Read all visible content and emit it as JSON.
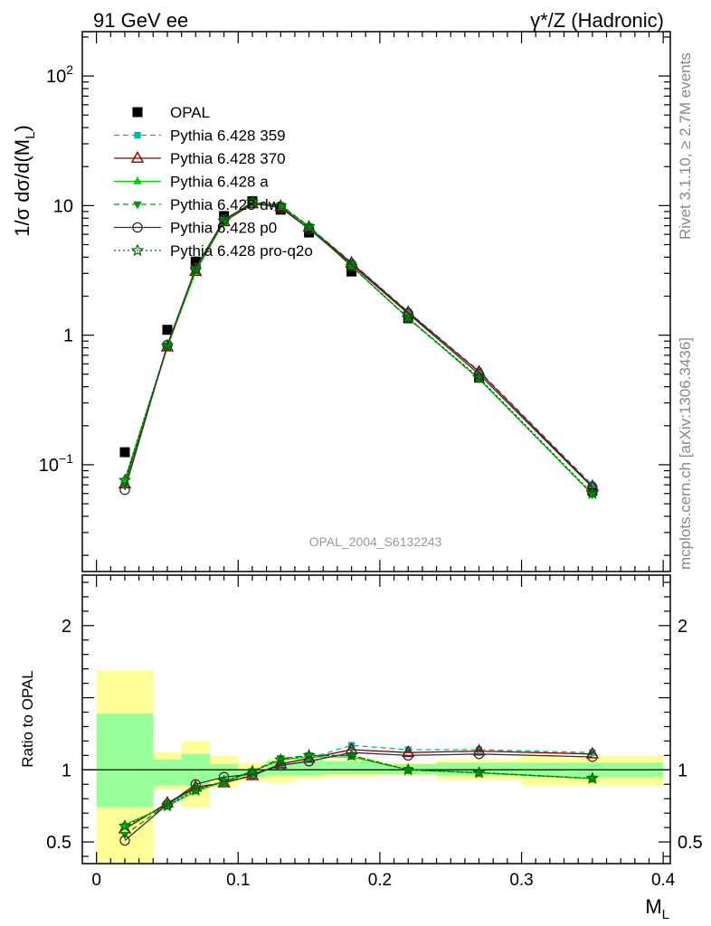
{
  "header": {
    "left": "91 GeV ee",
    "right": "γ*/Z (Hadronic)"
  },
  "side_labels": {
    "top": "Rivet 3.1.10, ≥ 2.7M events",
    "bottom": "mcplots.cern.ch [arXiv:1306.3436]"
  },
  "watermark": "OPAL_2004_S6132243",
  "chart_data": [
    {
      "type": "scatter",
      "panel": "main",
      "ylabel": "1/σ dσ/d(M_L)",
      "xlabel": "",
      "yscale": "log",
      "ylim": [
        0.015,
        220
      ],
      "xlim": [
        -0.01,
        0.405
      ],
      "yticks": [
        {
          "value": 0.1,
          "label": "10^-1"
        },
        {
          "value": 1,
          "label": "1"
        },
        {
          "value": 10,
          "label": "10"
        },
        {
          "value": 100,
          "label": "10^2"
        }
      ],
      "legend_position": "top-left",
      "x": [
        0.02,
        0.05,
        0.07,
        0.09,
        0.11,
        0.13,
        0.15,
        0.18,
        0.22,
        0.27,
        0.35
      ],
      "series": [
        {
          "name": "OPAL",
          "color": "#000000",
          "marker": "filled-square",
          "line": "none",
          "values": [
            0.125,
            1.1,
            3.7,
            8.3,
            10.8,
            9.3,
            6.2,
            3.1,
            1.35,
            0.47,
            0.063
          ]
        },
        {
          "name": "Pythia 6.428 359",
          "color": "#00b49b",
          "marker": "small-square",
          "line": "dashed",
          "values": [
            0.075,
            0.83,
            3.2,
            7.7,
            10.3,
            9.8,
            6.9,
            3.65,
            1.52,
            0.53,
            0.07
          ]
        },
        {
          "name": "Pythia 6.428 370",
          "color": "#8b0000",
          "marker": "open-triangle",
          "line": "solid",
          "values": [
            0.071,
            0.81,
            3.1,
            7.5,
            10.3,
            9.8,
            6.8,
            3.6,
            1.5,
            0.52,
            0.068
          ]
        },
        {
          "name": "Pythia 6.428 a",
          "color": "#00cc00",
          "marker": "filled-triangle",
          "line": "solid",
          "values": [
            0.077,
            0.82,
            3.1,
            7.6,
            10.6,
            10.0,
            6.8,
            3.4,
            1.36,
            0.46,
            0.059
          ]
        },
        {
          "name": "Pythia 6.428 dw",
          "color": "#009900",
          "marker": "filled-down-triangle",
          "line": "dashed",
          "values": [
            0.069,
            0.83,
            3.2,
            7.5,
            10.7,
            10.1,
            6.9,
            3.4,
            1.35,
            0.46,
            0.059
          ]
        },
        {
          "name": "Pythia 6.428 p0",
          "color": "#333333",
          "marker": "open-circle",
          "line": "solid",
          "values": [
            0.064,
            0.84,
            3.3,
            7.8,
            10.5,
            9.6,
            6.6,
            3.5,
            1.47,
            0.5,
            0.067
          ]
        },
        {
          "name": "Pythia 6.428 pro-q2o",
          "color": "#006600",
          "marker": "star",
          "line": "dotted",
          "values": [
            0.076,
            0.83,
            3.2,
            7.6,
            10.7,
            10.0,
            6.9,
            3.4,
            1.36,
            0.47,
            0.06
          ]
        }
      ]
    },
    {
      "type": "line",
      "panel": "ratio",
      "ylabel": "Ratio to OPAL",
      "xlabel": "M_L",
      "ylim": [
        0.35,
        2.35
      ],
      "xlim": [
        -0.01,
        0.405
      ],
      "xticks": [
        {
          "value": 0,
          "label": "0"
        },
        {
          "value": 0.1,
          "label": "0.1"
        },
        {
          "value": 0.2,
          "label": "0.2"
        },
        {
          "value": 0.3,
          "label": "0.3"
        },
        {
          "value": 0.4,
          "label": "0.4"
        }
      ],
      "yticks": [
        {
          "value": 0.5,
          "label": "0.5"
        },
        {
          "value": 1,
          "label": "1"
        },
        {
          "value": 2,
          "label": "2"
        }
      ],
      "uncertainty_bands": {
        "stat_color": "#99ff99",
        "total_color": "#ffff99",
        "bins": [
          {
            "x0": 0.0,
            "x1": 0.04,
            "stat": [
              0.74,
              1.39
            ],
            "total": [
              0.35,
              1.69
            ]
          },
          {
            "x0": 0.04,
            "x1": 0.06,
            "stat": [
              0.89,
              1.07
            ],
            "total": [
              0.86,
              1.12
            ]
          },
          {
            "x0": 0.06,
            "x1": 0.08,
            "stat": [
              0.89,
              1.11
            ],
            "total": [
              0.74,
              1.2
            ]
          },
          {
            "x0": 0.08,
            "x1": 0.1,
            "stat": [
              0.93,
              1.04
            ],
            "total": [
              0.88,
              1.1
            ]
          },
          {
            "x0": 0.1,
            "x1": 0.12,
            "stat": [
              0.95,
              1.0
            ],
            "total": [
              0.92,
              1.05
            ]
          },
          {
            "x0": 0.12,
            "x1": 0.14,
            "stat": [
              0.96,
              1.06
            ],
            "total": [
              0.91,
              1.08
            ]
          },
          {
            "x0": 0.14,
            "x1": 0.16,
            "stat": [
              0.96,
              1.07
            ],
            "total": [
              0.94,
              1.08
            ]
          },
          {
            "x0": 0.16,
            "x1": 0.2,
            "stat": [
              0.97,
              1.06
            ],
            "total": [
              0.95,
              1.07
            ]
          },
          {
            "x0": 0.2,
            "x1": 0.24,
            "stat": [
              0.97,
              1.04
            ],
            "total": [
              0.96,
              1.05
            ]
          },
          {
            "x0": 0.24,
            "x1": 0.3,
            "stat": [
              0.96,
              1.05
            ],
            "total": [
              0.93,
              1.07
            ]
          },
          {
            "x0": 0.3,
            "x1": 0.4,
            "stat": [
              0.95,
              1.05
            ],
            "total": [
              0.89,
              1.1
            ]
          }
        ]
      },
      "x": [
        0.02,
        0.05,
        0.07,
        0.09,
        0.11,
        0.13,
        0.15,
        0.18,
        0.22,
        0.27,
        0.35
      ],
      "series": [
        {
          "name": "Pythia 6.428 359",
          "color": "#00b49b",
          "marker": "small-square",
          "line": "dashed",
          "values": [
            0.61,
            0.76,
            0.87,
            0.92,
            0.96,
            1.04,
            1.08,
            1.17,
            1.14,
            1.14,
            1.12
          ]
        },
        {
          "name": "Pythia 6.428 370",
          "color": "#8b0000",
          "marker": "open-triangle",
          "line": "solid",
          "values": [
            0.59,
            0.77,
            0.88,
            0.91,
            0.96,
            1.04,
            1.08,
            1.14,
            1.12,
            1.13,
            1.11
          ]
        },
        {
          "name": "Pythia 6.428 a",
          "color": "#00cc00",
          "marker": "filled-triangle",
          "line": "solid",
          "values": [
            0.62,
            0.75,
            0.85,
            0.92,
            0.99,
            1.07,
            1.09,
            1.09,
            1.0,
            0.98,
            0.94
          ]
        },
        {
          "name": "Pythia 6.428 dw",
          "color": "#009900",
          "marker": "filled-down-triangle",
          "line": "dashed",
          "values": [
            0.55,
            0.76,
            0.87,
            0.91,
            0.99,
            1.08,
            1.1,
            1.1,
            1.0,
            0.98,
            0.94
          ]
        },
        {
          "name": "Pythia 6.428 p0",
          "color": "#333333",
          "marker": "open-circle",
          "line": "solid",
          "values": [
            0.51,
            0.76,
            0.9,
            0.95,
            0.97,
            1.03,
            1.06,
            1.12,
            1.1,
            1.11,
            1.09
          ]
        },
        {
          "name": "Pythia 6.428 pro-q2o",
          "color": "#006600",
          "marker": "star",
          "line": "dotted",
          "values": [
            0.61,
            0.75,
            0.86,
            0.92,
            0.99,
            1.07,
            1.1,
            1.1,
            1.0,
            0.98,
            0.94
          ]
        }
      ]
    }
  ]
}
